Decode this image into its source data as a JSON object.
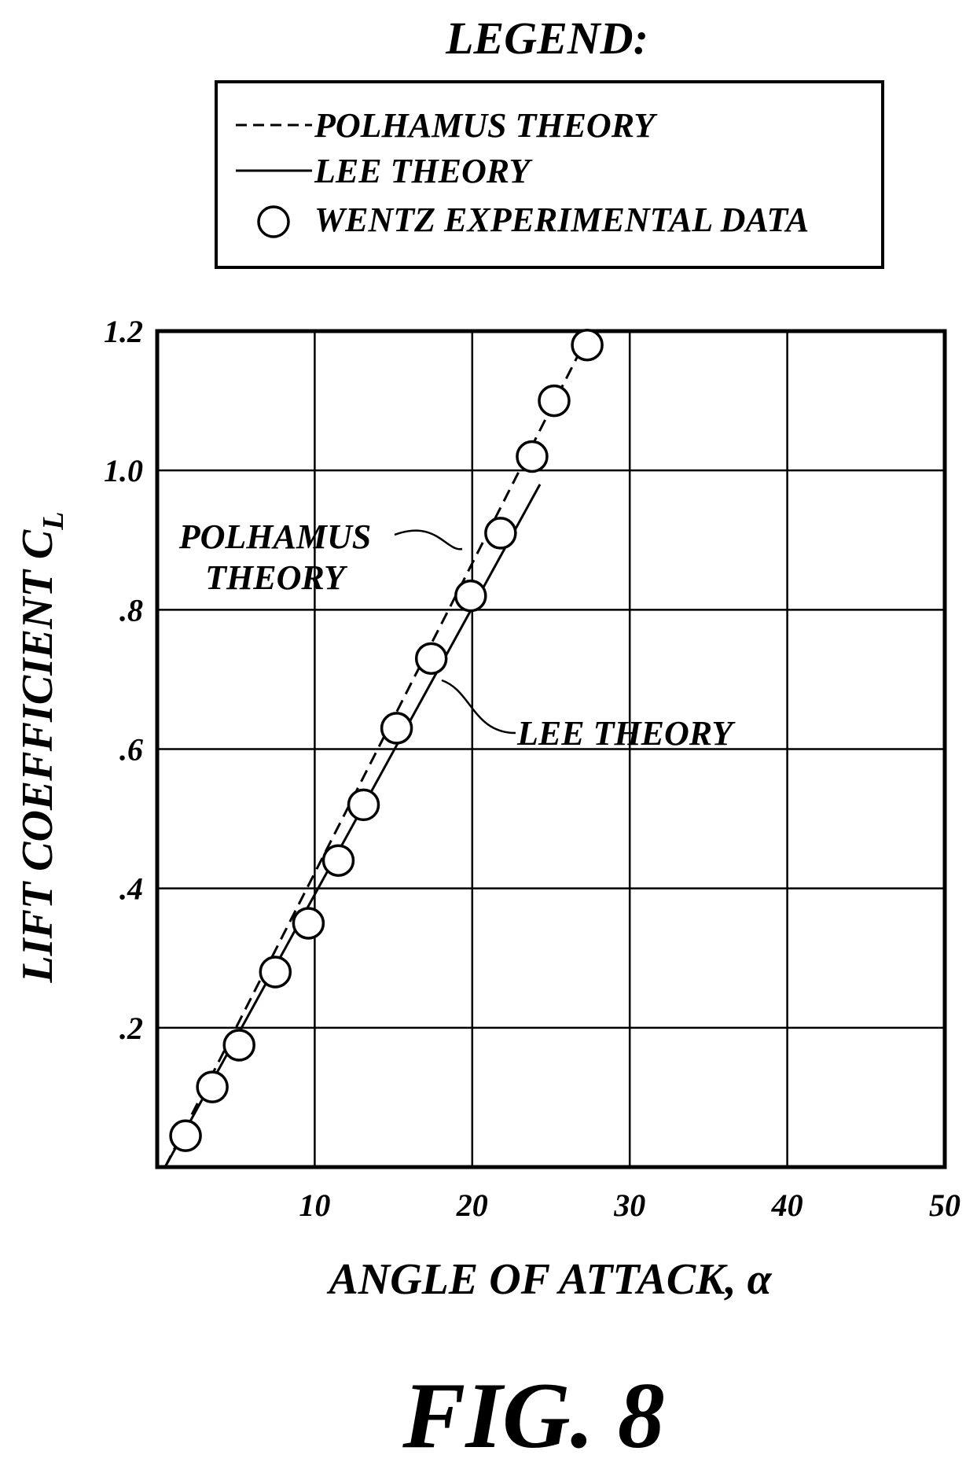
{
  "legend": {
    "title": "LEGEND:",
    "entries": [
      {
        "label": "POLHAMUS THEORY",
        "style": "dashed"
      },
      {
        "label": "LEE THEORY",
        "style": "solid"
      },
      {
        "label": "WENTZ EXPERIMENTAL DATA",
        "style": "circle"
      }
    ]
  },
  "figure_label": "FIG. 8",
  "chart_data": {
    "type": "line",
    "xlabel": "ANGLE OF ATTACK, α",
    "ylabel": "LIFT COEFFICIENT C",
    "ylabel_subscript": "L",
    "xlim": [
      0,
      50
    ],
    "ylim": [
      0,
      1.2
    ],
    "xticks": [
      10,
      20,
      30,
      40,
      50
    ],
    "xtick_labels": [
      "10",
      "20",
      "30",
      "40",
      "50"
    ],
    "yticks": [
      0.2,
      0.4,
      0.6,
      0.8,
      1.0,
      1.2
    ],
    "ytick_labels": [
      ".2",
      ".4",
      ".6",
      ".8",
      "1.0",
      "1.2"
    ],
    "grid": true,
    "series": [
      {
        "name": "POLHAMUS THEORY",
        "style": "dashed",
        "x": [
          0.5,
          27.5
        ],
        "y": [
          0.0,
          1.2
        ]
      },
      {
        "name": "LEE THEORY",
        "style": "solid",
        "x": [
          0.5,
          24.3
        ],
        "y": [
          0.0,
          0.98
        ]
      },
      {
        "name": "WENTZ EXPERIMENTAL DATA",
        "style": "circle",
        "x": [
          1.8,
          3.5,
          5.2,
          7.5,
          9.6,
          11.5,
          13.1,
          15.2,
          17.4,
          19.9,
          21.8,
          23.8,
          25.2,
          27.3
        ],
        "y": [
          0.045,
          0.115,
          0.175,
          0.28,
          0.35,
          0.44,
          0.52,
          0.63,
          0.73,
          0.82,
          0.91,
          1.02,
          1.1,
          1.18
        ]
      }
    ],
    "annotations": [
      {
        "text_lines": [
          "POLHAMUS",
          "THEORY"
        ],
        "target_series": "POLHAMUS THEORY"
      },
      {
        "text_lines": [
          "LEE THEORY"
        ],
        "target_series": "LEE THEORY"
      }
    ]
  }
}
